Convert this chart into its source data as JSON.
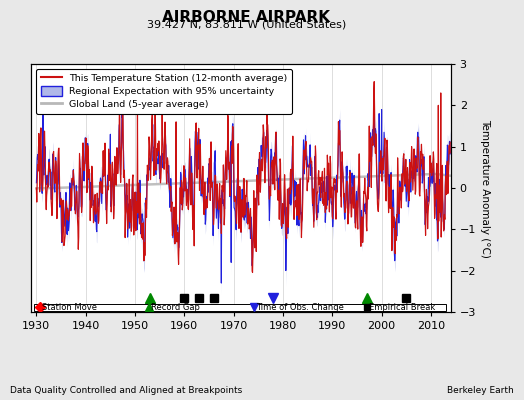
{
  "title": "AIRBORNE AIRPARK",
  "subtitle": "39.427 N, 83.811 W (United States)",
  "ylabel": "Temperature Anomaly (°C)",
  "ylim": [
    -3,
    3
  ],
  "xlim": [
    1929,
    2014
  ],
  "xticks": [
    1930,
    1940,
    1950,
    1960,
    1970,
    1980,
    1990,
    2000,
    2010
  ],
  "yticks": [
    -3,
    -2,
    -1,
    0,
    1,
    2,
    3
  ],
  "footer_left": "Data Quality Controlled and Aligned at Breakpoints",
  "footer_right": "Berkeley Earth",
  "bg_color": "#e8e8e8",
  "plot_bg_color": "#ffffff",
  "record_gaps": [
    1953,
    1997
  ],
  "empirical_breaks": [
    1960,
    1963,
    1966,
    2005
  ],
  "time_of_obs_changes": [
    1978
  ],
  "station_moves": [],
  "seed": 42
}
